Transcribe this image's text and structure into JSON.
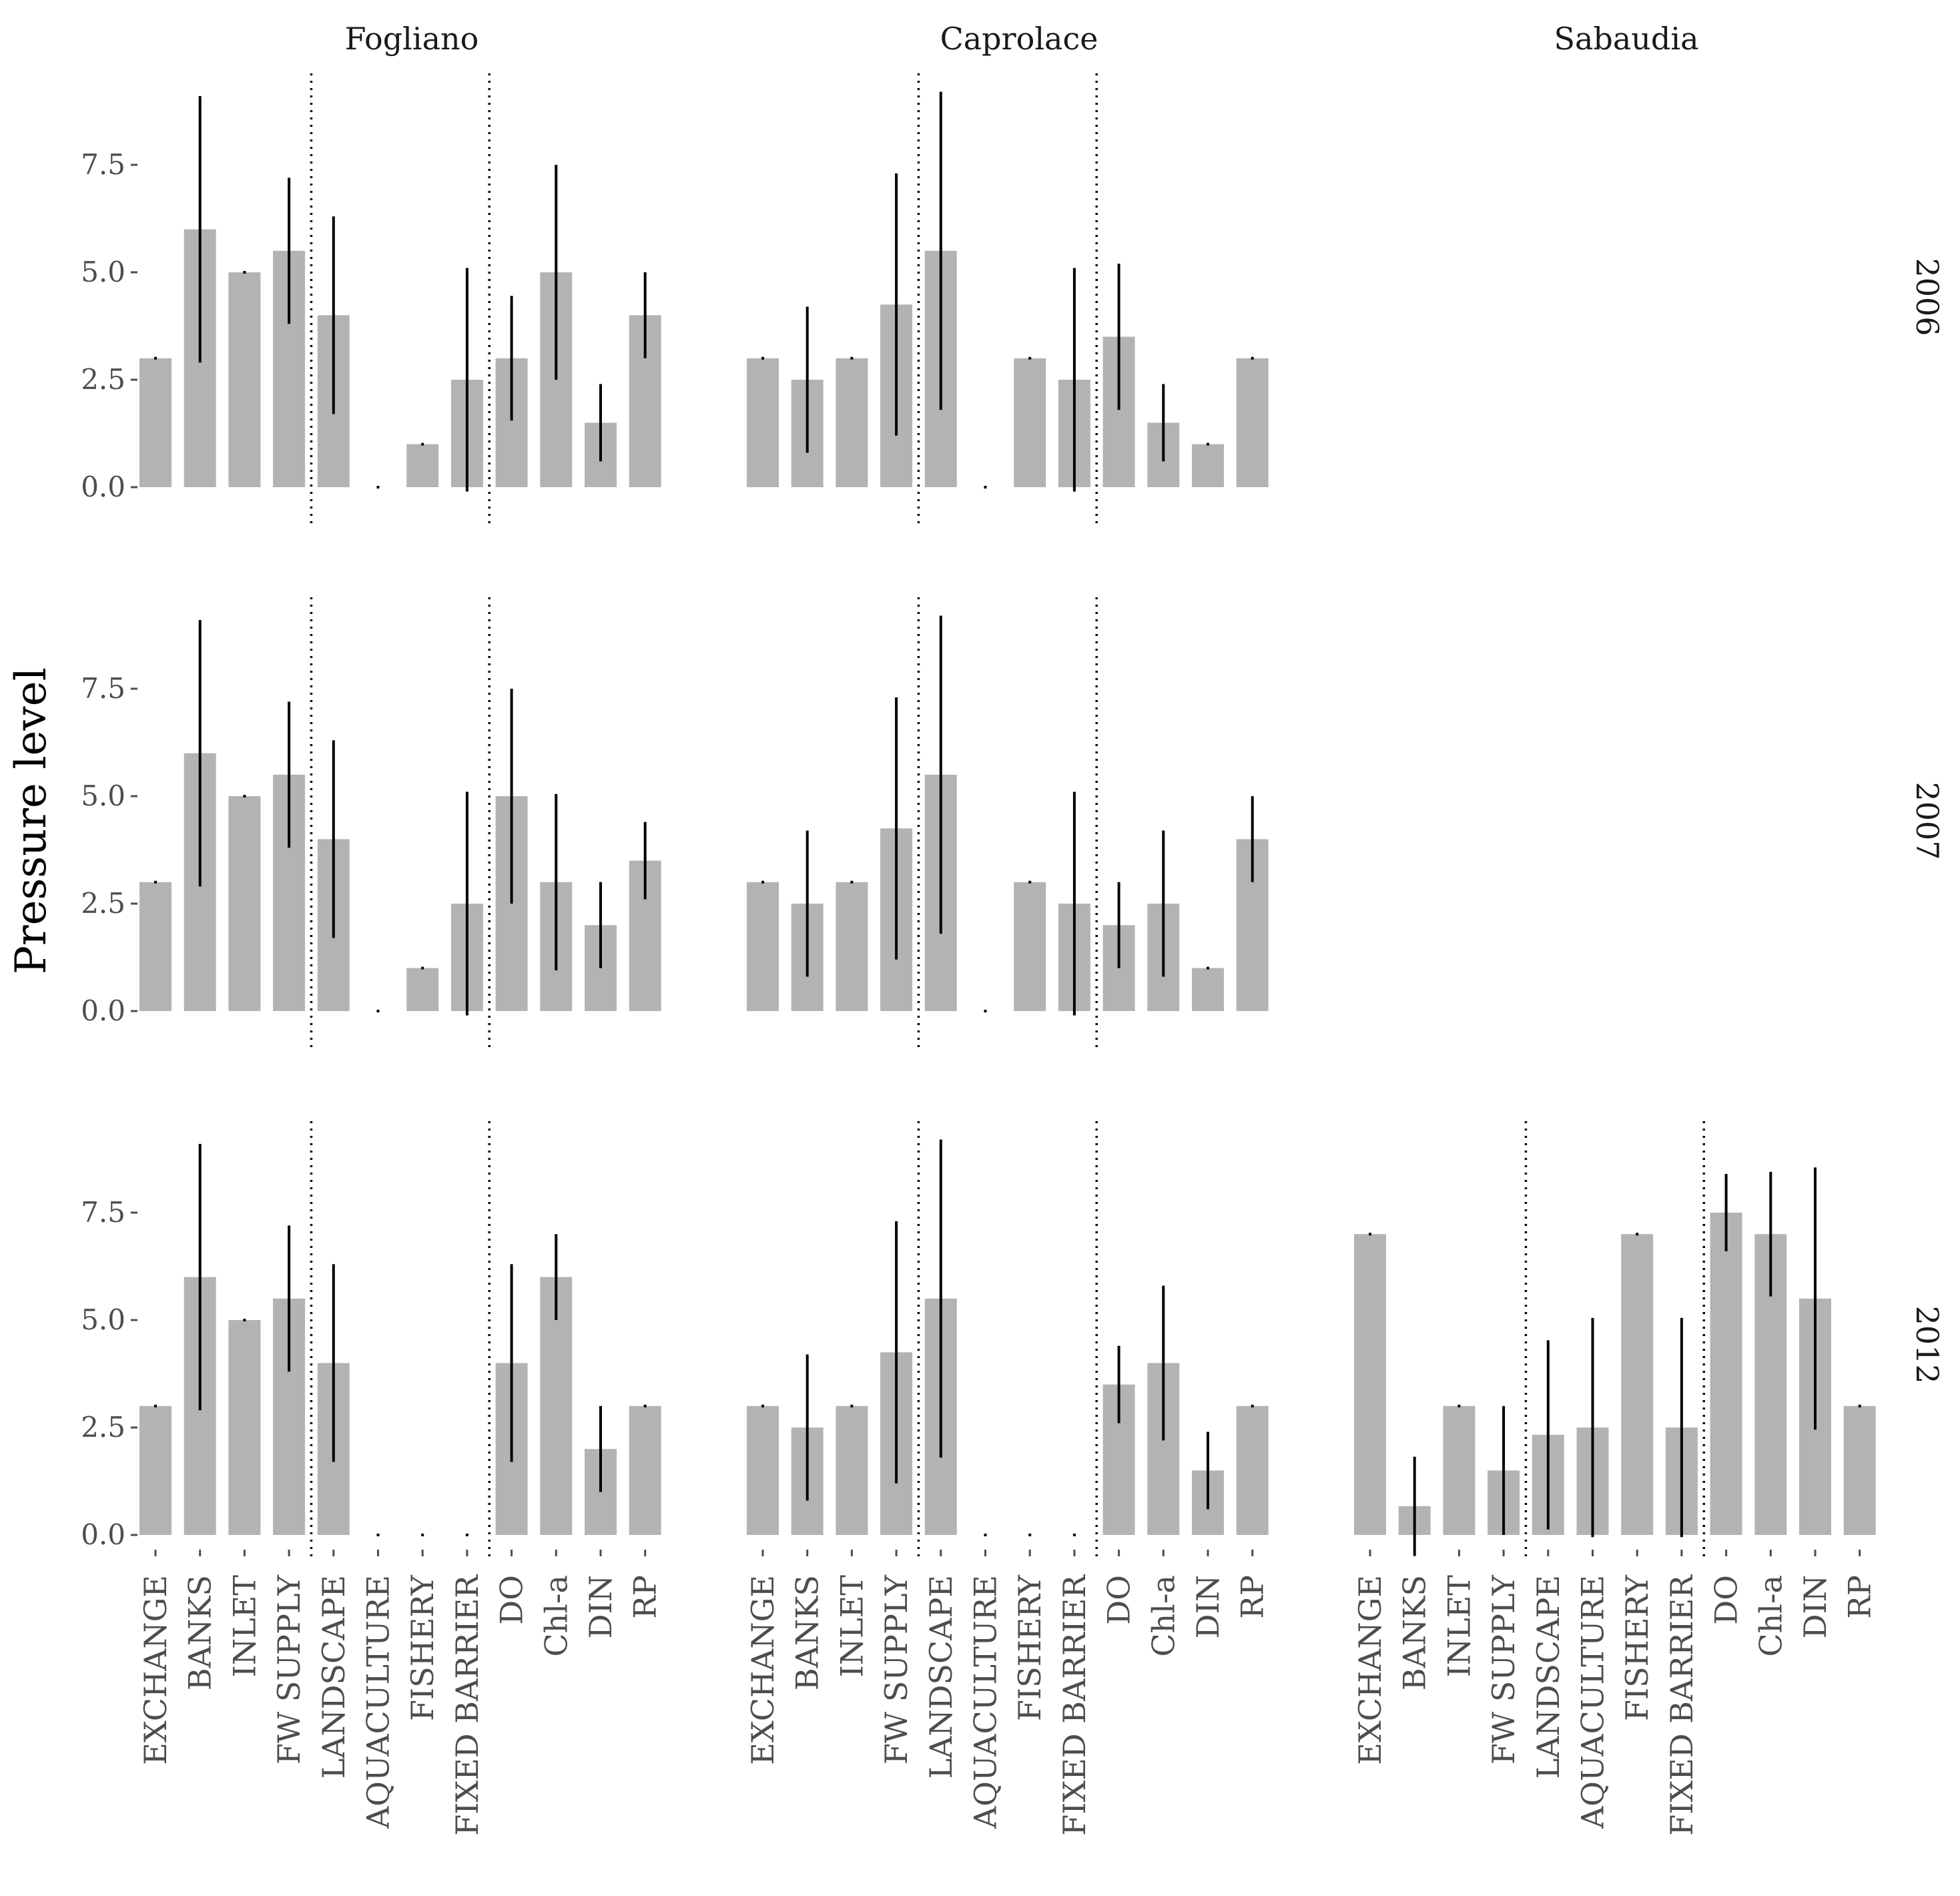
{
  "chart_data": {
    "type": "bar",
    "ylabel": "Pressure level",
    "ylim": [
      0,
      9.5
    ],
    "yticks": [
      0,
      2.5,
      5,
      7.5
    ],
    "ytick_labels": [
      "0.0",
      "2.5",
      "5.0",
      "7.5"
    ],
    "categories": [
      "EXCHANGE",
      "BANKS",
      "INLET",
      "FW SUPPLY",
      "LANDSCAPE",
      "AQUACULTURE",
      "FISHERY",
      "FIXED BARRIER",
      "DO",
      "Chl-a",
      "DIN",
      "RP"
    ],
    "separators_after": [
      4,
      8
    ],
    "columns": [
      "Fogliano",
      "Caprolace",
      "Sabaudia"
    ],
    "rows": [
      "2006",
      "2007",
      "2012"
    ],
    "panels": [
      {
        "column": "Fogliano",
        "row": "2006",
        "values": [
          3,
          6,
          5,
          5.5,
          4,
          0,
          1,
          2.5,
          3,
          5,
          1.5,
          4
        ],
        "errors": [
          0,
          3.1,
          0,
          1.7,
          2.3,
          0,
          0,
          2.6,
          1.45,
          2.5,
          0.9,
          1.0
        ]
      },
      {
        "column": "Caprolace",
        "row": "2006",
        "values": [
          3,
          2.5,
          3,
          4.25,
          5.5,
          0,
          3,
          2.5,
          3.5,
          1.5,
          1,
          3
        ],
        "errors": [
          0,
          1.7,
          0,
          3.05,
          3.7,
          0,
          0,
          2.6,
          1.7,
          0.9,
          0,
          0
        ]
      },
      {
        "column": "Fogliano",
        "row": "2007",
        "values": [
          3,
          6,
          5,
          5.5,
          4,
          0,
          1,
          2.5,
          5,
          3,
          2,
          3.5
        ],
        "errors": [
          0,
          3.1,
          0,
          1.7,
          2.3,
          0,
          0,
          2.6,
          2.5,
          2.05,
          1.0,
          0.9
        ]
      },
      {
        "column": "Caprolace",
        "row": "2007",
        "values": [
          3,
          2.5,
          3,
          4.25,
          5.5,
          0,
          3,
          2.5,
          2,
          2.5,
          1,
          4
        ],
        "errors": [
          0,
          1.7,
          0,
          3.05,
          3.7,
          0,
          0,
          2.6,
          1.0,
          1.7,
          0,
          1.0
        ]
      },
      {
        "column": "Fogliano",
        "row": "2012",
        "values": [
          3,
          6,
          5,
          5.5,
          4,
          0,
          0,
          0,
          4,
          6,
          2,
          3
        ],
        "errors": [
          0,
          3.1,
          0,
          1.7,
          2.3,
          0,
          0,
          0,
          2.3,
          1.0,
          1.0,
          0
        ]
      },
      {
        "column": "Caprolace",
        "row": "2012",
        "values": [
          3,
          2.5,
          3,
          4.25,
          5.5,
          0,
          0,
          0,
          3.5,
          4,
          1.5,
          3
        ],
        "errors": [
          0,
          1.7,
          0,
          3.05,
          3.7,
          0,
          0,
          0,
          0.9,
          1.8,
          0.9,
          0
        ]
      },
      {
        "column": "Sabaudia",
        "row": "2012",
        "values": [
          7,
          0.67,
          3,
          1.5,
          2.33,
          2.5,
          7,
          2.5,
          7.5,
          7,
          5.5,
          3
        ],
        "errors": [
          0,
          1.15,
          0,
          1.5,
          2.2,
          2.55,
          0,
          2.55,
          0.9,
          1.45,
          3.05,
          0
        ]
      }
    ]
  }
}
